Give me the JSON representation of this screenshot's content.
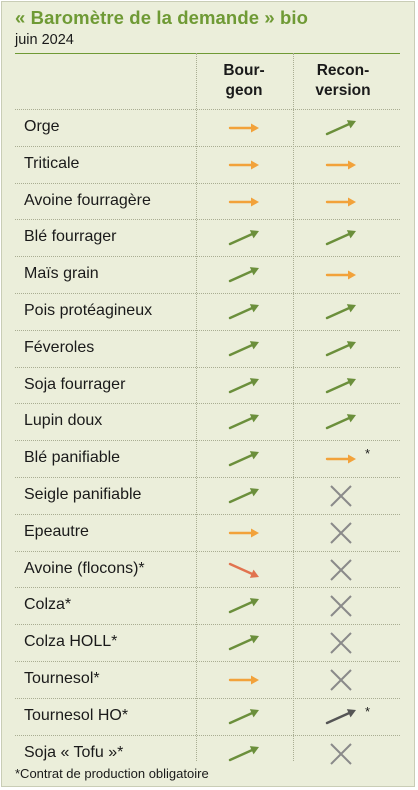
{
  "header": {
    "title": "« Baromètre de la demande » bio",
    "subtitle": "juin 2024",
    "col_bourgeon": [
      "Bour-",
      "geon"
    ],
    "col_reconversion": [
      "Recon-",
      "version"
    ]
  },
  "colors": {
    "up": "#6b8f3b",
    "stable": "#f2a23a",
    "down": "#e1734f",
    "gray": "#555555",
    "cross": "#8a8a8a",
    "title": "#6f9a35"
  },
  "rows": [
    {
      "label": "Orge",
      "bourgeon": "stable",
      "reconversion": "up"
    },
    {
      "label": "Triticale",
      "bourgeon": "stable",
      "reconversion": "stable"
    },
    {
      "label": "Avoine fourragère",
      "bourgeon": "stable",
      "reconversion": "stable"
    },
    {
      "label": "Blé fourrager",
      "bourgeon": "up",
      "reconversion": "up"
    },
    {
      "label": "Maïs grain",
      "bourgeon": "up",
      "reconversion": "stable"
    },
    {
      "label": "Pois protéagineux",
      "bourgeon": "up",
      "reconversion": "up"
    },
    {
      "label": "Féveroles",
      "bourgeon": "up",
      "reconversion": "up"
    },
    {
      "label": "Soja fourrager",
      "bourgeon": "up",
      "reconversion": "up"
    },
    {
      "label": "Lupin doux",
      "bourgeon": "up",
      "reconversion": "up"
    },
    {
      "label": "Blé panifiable",
      "bourgeon": "up",
      "reconversion": "stable",
      "reconversion_note": "*"
    },
    {
      "label": "Seigle panifiable",
      "bourgeon": "up",
      "reconversion": "none"
    },
    {
      "label": "Epeautre",
      "bourgeon": "stable",
      "reconversion": "none"
    },
    {
      "label": "Avoine (flocons)*",
      "bourgeon": "down",
      "reconversion": "none"
    },
    {
      "label": "Colza*",
      "bourgeon": "up",
      "reconversion": "none"
    },
    {
      "label": "Colza HOLL*",
      "bourgeon": "up",
      "reconversion": "none"
    },
    {
      "label": "Tournesol*",
      "bourgeon": "stable",
      "reconversion": "none"
    },
    {
      "label": "Tournesol HO*",
      "bourgeon": "up",
      "reconversion": "up-gray",
      "reconversion_note": "*"
    },
    {
      "label": "Soja « Tofu »*",
      "bourgeon": "up",
      "reconversion": "none"
    }
  ],
  "footnote": "*Contrat de production obligatoire"
}
